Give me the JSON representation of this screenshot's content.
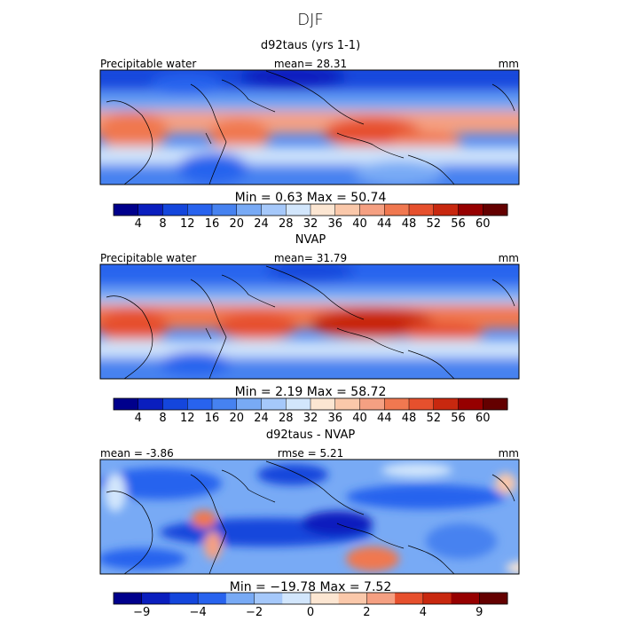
{
  "figure": {
    "title": "DJF"
  },
  "colors": {
    "diverging_scale": [
      "#00008c",
      "#0a1ebe",
      "#1446dc",
      "#2863ee",
      "#4682f0",
      "#78aaf5",
      "#a5c8fa",
      "#d2e6fc",
      "#fce6d2",
      "#fac8aa",
      "#f5a082",
      "#f07850",
      "#e6502d",
      "#c8280f",
      "#960000",
      "#640000"
    ],
    "coast": "#000000",
    "frame": "#000000"
  },
  "chart_data": [
    {
      "type": "heatmap",
      "title": "d92taus (yrs 1-1)",
      "left_label": "Precipitable water",
      "stat_text": "mean=  28.31",
      "units": "mm",
      "field": "precipitable-water-model",
      "min_max_text": "Min =    0.63 Max =  50.74",
      "colorbar": {
        "levels": [
          4,
          8,
          12,
          16,
          20,
          24,
          28,
          32,
          36,
          40,
          44,
          48,
          52,
          56,
          60
        ],
        "tick_labels": [
          "4",
          "8",
          "12",
          "16",
          "20",
          "24",
          "28",
          "32",
          "36",
          "40",
          "44",
          "48",
          "52",
          "56",
          "60"
        ]
      }
    },
    {
      "type": "heatmap",
      "title": "NVAP",
      "left_label": "Precipitable water",
      "stat_text": "mean=  31.79",
      "units": "mm",
      "field": "precipitable-water-obs",
      "min_max_text": "Min =    2.19 Max =  58.72",
      "colorbar": {
        "levels": [
          4,
          8,
          12,
          16,
          20,
          24,
          28,
          32,
          36,
          40,
          44,
          48,
          52,
          56,
          60
        ],
        "tick_labels": [
          "4",
          "8",
          "12",
          "16",
          "20",
          "24",
          "28",
          "32",
          "36",
          "40",
          "44",
          "48",
          "52",
          "56",
          "60"
        ]
      }
    },
    {
      "type": "heatmap",
      "title": "d92taus - NVAP",
      "left_label": "mean =  -3.86",
      "stat_text": "rmse =    5.21",
      "units": "mm",
      "field": "difference",
      "min_max_text": "Min = −19.78 Max =    7.52",
      "colorbar": {
        "levels": [
          -9,
          -6,
          -4,
          -3,
          -2,
          -1,
          0,
          1,
          2,
          3,
          4,
          6,
          9
        ],
        "tick_labels": [
          "−9",
          "−4",
          "−2",
          "0",
          "2",
          "4",
          "9"
        ]
      }
    }
  ]
}
